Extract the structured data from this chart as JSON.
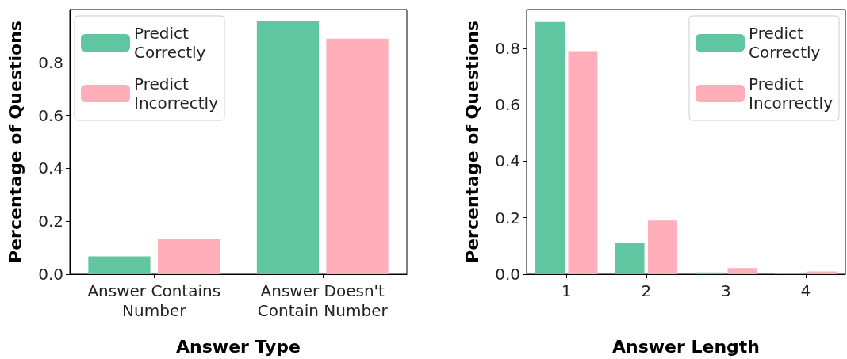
{
  "chart_data": [
    {
      "type": "bar",
      "xlabel": "Answer Type",
      "ylabel": "Percentage of Questions",
      "categories": [
        "Answer Contains\nNumber",
        "Answer Doesn't\nContain Number"
      ],
      "series": [
        {
          "name": "Predict\nCorrectly",
          "color": "#60c5a1",
          "values": [
            0.067,
            0.955
          ]
        },
        {
          "name": "Predict\nIncorrectly",
          "color": "#ffaeba",
          "values": [
            0.133,
            0.89
          ]
        }
      ],
      "ylim": [
        0,
        1.0
      ],
      "yticks": [
        {
          "value": 0,
          "label": "0.0"
        },
        {
          "value": 0.2,
          "label": "0.2"
        },
        {
          "value": 0.4,
          "label": "0.4"
        },
        {
          "value": 0.6,
          "label": "0.6"
        },
        {
          "value": 0.8,
          "label": "0.8"
        }
      ],
      "grid": false,
      "legend": "top left"
    },
    {
      "type": "bar",
      "xlabel": "Answer Length",
      "ylabel": "Percentage of Questions",
      "categories": [
        "1",
        "2",
        "3",
        "4"
      ],
      "series": [
        {
          "name": "Predict\nCorrectly",
          "color": "#60c5a1",
          "values": [
            0.893,
            0.112,
            0.006,
            0.003
          ]
        },
        {
          "name": "Predict\nIncorrectly",
          "color": "#ffaeba",
          "values": [
            0.79,
            0.19,
            0.022,
            0.01
          ]
        }
      ],
      "ylim": [
        0,
        0.937
      ],
      "yticks": [
        {
          "value": 0,
          "label": "0.0"
        },
        {
          "value": 0.2,
          "label": "0.2"
        },
        {
          "value": 0.4,
          "label": "0.4"
        },
        {
          "value": 0.6,
          "label": "0.6"
        },
        {
          "value": 0.8,
          "label": "0.8"
        }
      ],
      "grid": false,
      "legend": "top right"
    }
  ]
}
